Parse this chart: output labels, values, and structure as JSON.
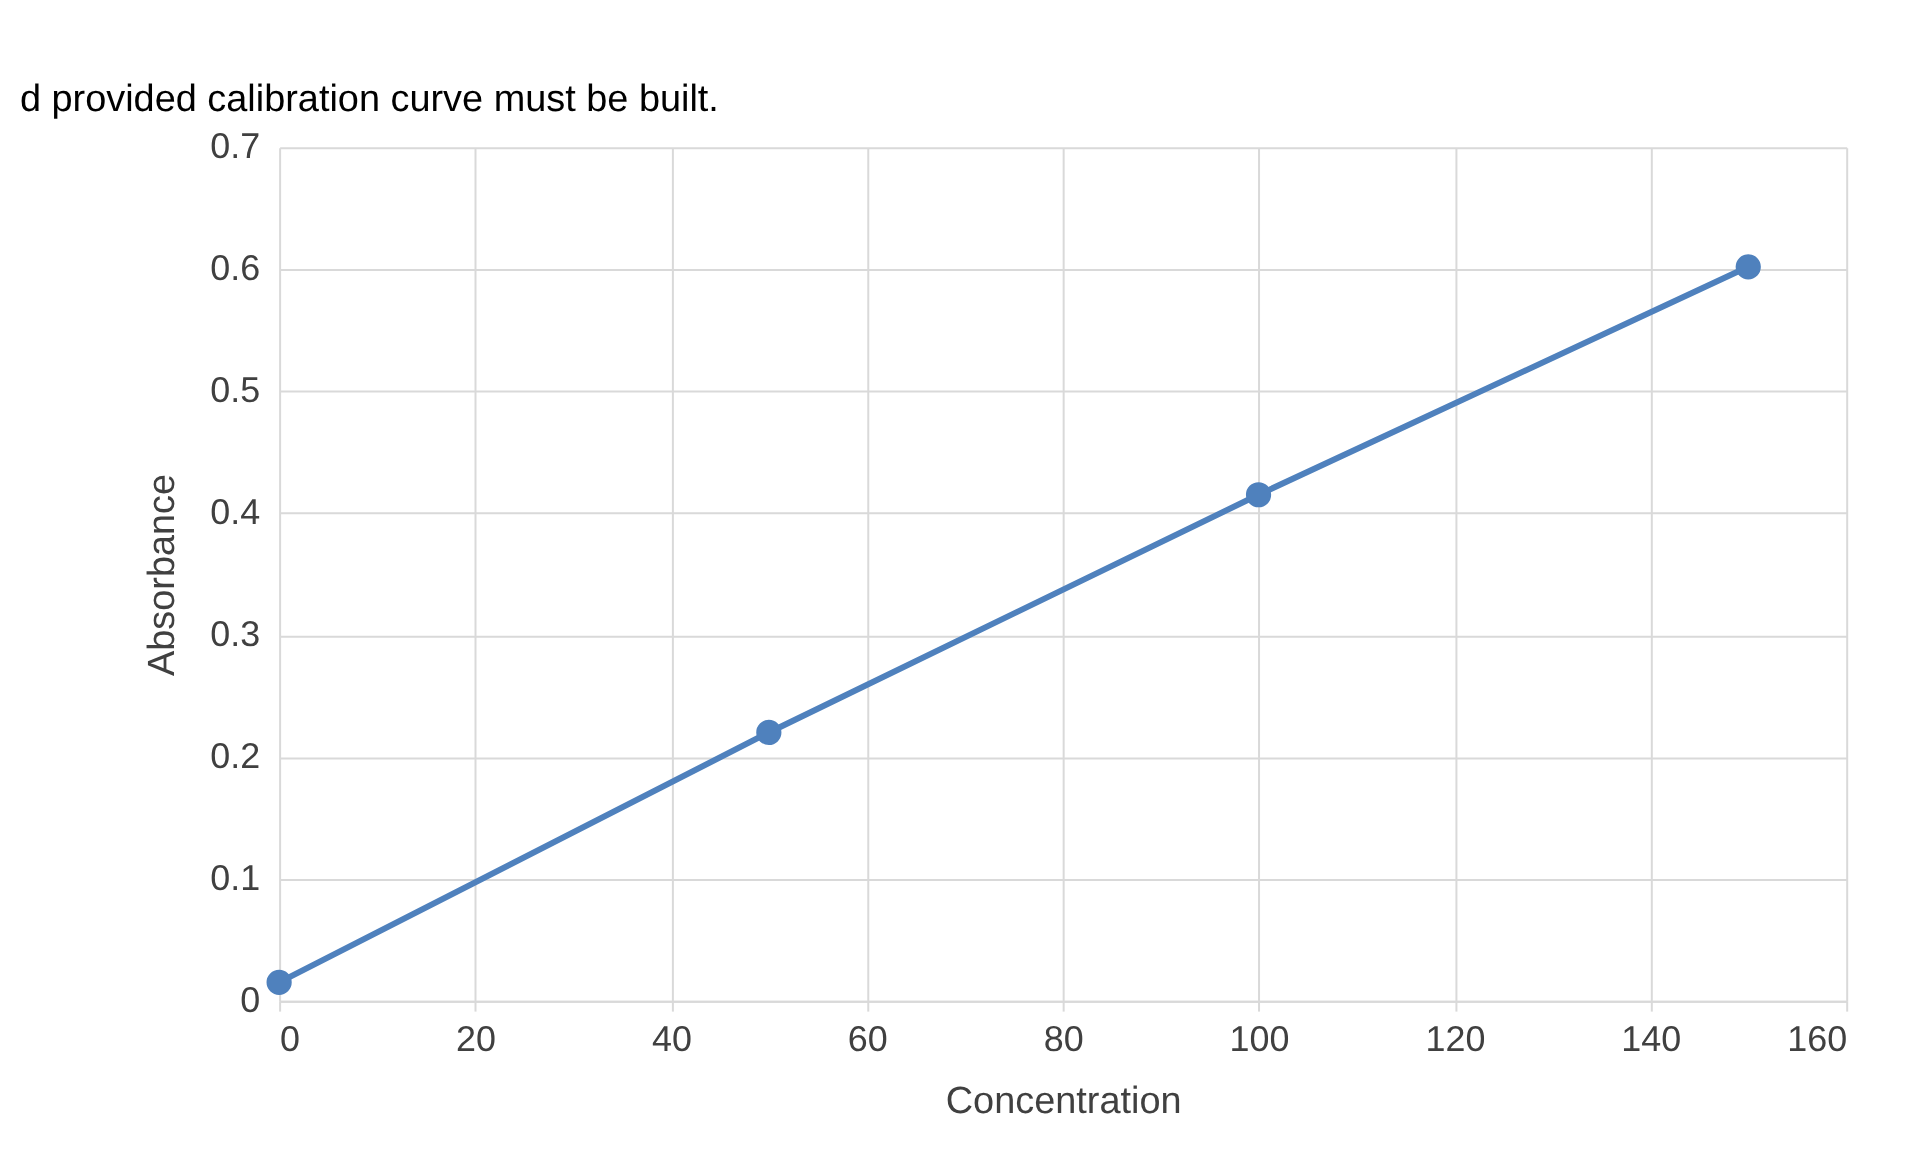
{
  "chart_data": {
    "type": "line",
    "x": [
      0,
      50,
      100,
      150
    ],
    "series": [
      {
        "color": "#4f81bd",
        "values": [
          0.015,
          0.22,
          0.415,
          0.602
        ]
      }
    ],
    "xlabel": "Concentration",
    "ylabel": "Absorbance",
    "xlim": [
      0,
      160
    ],
    "xticks": [
      0,
      20,
      40,
      60,
      80,
      100,
      120,
      140,
      160
    ],
    "ylim": [
      0,
      0.7
    ],
    "yticks": [
      0,
      0.1,
      0.2,
      0.3,
      0.4,
      0.5,
      0.6,
      0.7
    ],
    "grid": true,
    "marker": "circle",
    "line_style": "solid",
    "annotations": [
      "d provided calibration curve must be built."
    ]
  }
}
